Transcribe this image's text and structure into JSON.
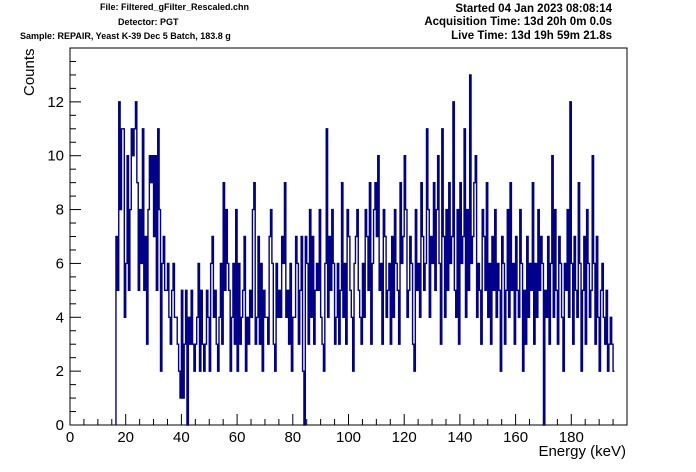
{
  "header": {
    "file": "File: Filtered_gFilter_Rescaled.chn",
    "detector": "Detector: PGT",
    "sample": "Sample: REPAIR, Yeast K-39 Dec 5 Batch, 183.8 g",
    "started": "Started 04 Jan 2023 08:08:14",
    "acquisition": "Acquisition Time: 13d 20h 0m 0.0s",
    "live": "Live Time: 13d 19h 59m 21.8s"
  },
  "chart_data": {
    "type": "line",
    "style": "histogram-step",
    "xlabel": "Energy (keV)",
    "ylabel": "Counts",
    "xlim": [
      0,
      200
    ],
    "ylim": [
      0,
      14
    ],
    "xticks": [
      0,
      20,
      40,
      60,
      80,
      100,
      120,
      140,
      160,
      180
    ],
    "yticks": [
      0,
      2,
      4,
      6,
      8,
      10,
      12
    ],
    "grid": false,
    "line_color": "#00008b",
    "bin_width_keV": 0.5,
    "bin_start_keV": 16.5,
    "series": [
      {
        "values": [
          7,
          5,
          12,
          8,
          11,
          11,
          4,
          6,
          10,
          5,
          8,
          11,
          10,
          11,
          12,
          9,
          5,
          8,
          6,
          11,
          5,
          7,
          3,
          8,
          10,
          9,
          10,
          7,
          10,
          5,
          11,
          8,
          2,
          6,
          7,
          5,
          5,
          6,
          4,
          3,
          5,
          6,
          4,
          4,
          3,
          2,
          1,
          5,
          1,
          3,
          5,
          0,
          4,
          3,
          5,
          3,
          2,
          3,
          4,
          6,
          2,
          5,
          3,
          2,
          3,
          5,
          4,
          2,
          6,
          7,
          4,
          5,
          3,
          2,
          4,
          6,
          3,
          9,
          5,
          8,
          6,
          5,
          2,
          4,
          6,
          3,
          8,
          2,
          6,
          3,
          4,
          5,
          7,
          2,
          4,
          3,
          5,
          4,
          8,
          9,
          3,
          4,
          7,
          3,
          6,
          2,
          5,
          4,
          4,
          3,
          7,
          8,
          6,
          3,
          2,
          6,
          4,
          5,
          4,
          7,
          6,
          9,
          4,
          5,
          3,
          6,
          2,
          4,
          4,
          7,
          6,
          3,
          5,
          7,
          2,
          0,
          7,
          6,
          3,
          8,
          4,
          7,
          3,
          5,
          6,
          5,
          8,
          4,
          3,
          2,
          6,
          11,
          4,
          7,
          5,
          8,
          6,
          3,
          4,
          6,
          3,
          5,
          9,
          4,
          6,
          3,
          8,
          7,
          5,
          4,
          2,
          6,
          7,
          8,
          5,
          4,
          3,
          6,
          4,
          8,
          7,
          5,
          9,
          3,
          6,
          8,
          9,
          7,
          10,
          5,
          6,
          3,
          8,
          7,
          4,
          5,
          6,
          3,
          7,
          4,
          8,
          6,
          5,
          3,
          9,
          6,
          7,
          10,
          8,
          4,
          5,
          7,
          6,
          3,
          2,
          8,
          5,
          6,
          4,
          9,
          7,
          5,
          6,
          11,
          8,
          4,
          7,
          6,
          9,
          5,
          8,
          10,
          6,
          3,
          11,
          7,
          4,
          8,
          5,
          9,
          6,
          7,
          12,
          5,
          4,
          8,
          3,
          9,
          6,
          7,
          11,
          4,
          8,
          5,
          13,
          6,
          7,
          9,
          10,
          4,
          6,
          5,
          3,
          8,
          7,
          5,
          9,
          4,
          6,
          3,
          7,
          5,
          8,
          4,
          6,
          5,
          2,
          7,
          6,
          3,
          5,
          8,
          4,
          9,
          5,
          6,
          3,
          7,
          5,
          4,
          8,
          6,
          2,
          5,
          3,
          7,
          4,
          6,
          5,
          9,
          3,
          6,
          4,
          8,
          5,
          7,
          6,
          0,
          5,
          4,
          7,
          3,
          6,
          10,
          4,
          8,
          5,
          3,
          7,
          6,
          4,
          2,
          6,
          5,
          8,
          4,
          12,
          6,
          3,
          7,
          5,
          4,
          9,
          6,
          2,
          5,
          7,
          3,
          8,
          6,
          4,
          5,
          10,
          6,
          3,
          7,
          4,
          2,
          5,
          6,
          4,
          3,
          5,
          2,
          3,
          4,
          3,
          2
        ]
      }
    ]
  }
}
